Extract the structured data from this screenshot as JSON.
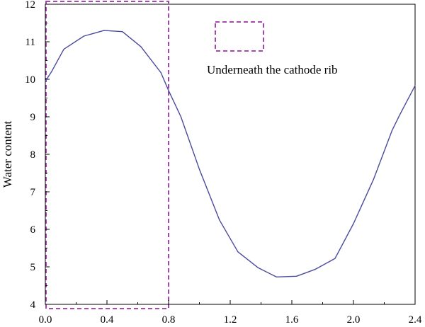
{
  "chart_data": {
    "type": "line",
    "ylabel": "Water content",
    "xlabel": "",
    "xlim": [
      0,
      2.4
    ],
    "ylim": [
      4,
      12
    ],
    "xticks": [
      "0.0",
      "0.4",
      "0.8",
      "1.2",
      "1.6",
      "2.0",
      "2.4"
    ],
    "xtick_values": [
      0,
      0.4,
      0.8,
      1.2,
      1.6,
      2.0,
      2.4
    ],
    "yticks": [
      "4",
      "5",
      "6",
      "7",
      "8",
      "9",
      "10",
      "11",
      "12"
    ],
    "ytick_values": [
      4,
      5,
      6,
      7,
      8,
      9,
      10,
      11,
      12
    ],
    "grid": false,
    "legend_position": "top-right",
    "series": [
      {
        "color": "#4a4a9e",
        "x": [
          0.0,
          0.04,
          0.12,
          0.25,
          0.38,
          0.5,
          0.62,
          0.75,
          0.8,
          0.88,
          1.0,
          1.13,
          1.25,
          1.38,
          1.5,
          1.63,
          1.75,
          1.88,
          2.0,
          2.13,
          2.25,
          2.3,
          2.4
        ],
        "y": [
          9.95,
          10.2,
          10.8,
          11.15,
          11.3,
          11.27,
          10.87,
          10.18,
          9.7,
          9.0,
          7.6,
          6.25,
          5.4,
          4.98,
          4.73,
          4.75,
          4.93,
          5.22,
          6.15,
          7.33,
          8.63,
          9.05,
          9.83
        ]
      }
    ],
    "rib_region": {
      "x_range": [
        0,
        0.8
      ],
      "color": "#9b30a5",
      "legend_label": "Underneath the cathode rib"
    }
  }
}
